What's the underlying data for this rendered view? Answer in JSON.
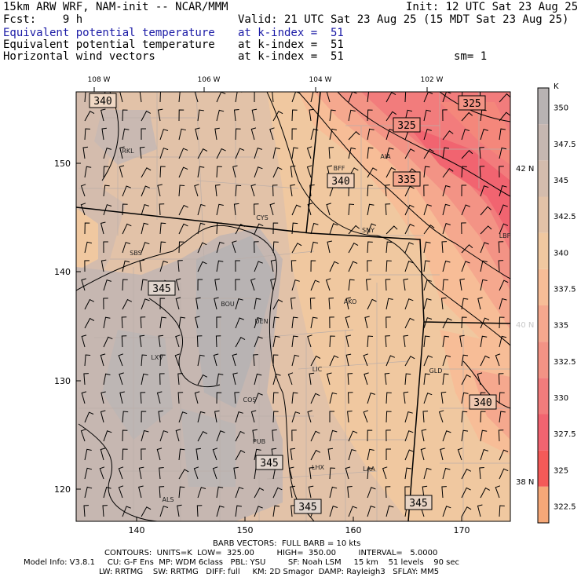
{
  "header": {
    "line1_left": "15km ARW WRF, NAM-init -- NCAR/MMM",
    "line1_right": "Init: 12 UTC Sat 23 Aug 25",
    "line2_left": "Fcst:    9 h",
    "line2_right": "Valid: 21 UTC Sat 23 Aug 25 (15 MDT Sat 23 Aug 25)",
    "field1_name": "Equivalent potential temperature",
    "field1_level": "at k-index =  51",
    "field2_name": "Equivalent potential temperature",
    "field2_level": "at k-index =  51",
    "field3_name": "Horizontal wind vectors",
    "field3_level": "at k-index =  51",
    "smoothing": "sm= 1"
  },
  "map": {
    "top_lon_labels": [
      "108 W",
      "106 W",
      "104 W",
      "102 W"
    ],
    "right_lat_labels": [
      "42 N",
      "40 N",
      "38 N"
    ],
    "x_ticks": [
      "140",
      "150",
      "160",
      "170"
    ],
    "y_ticks": [
      "150",
      "140",
      "130",
      "120"
    ],
    "cities": [
      "RKL",
      "BFF",
      "AIA",
      "CYS",
      "SNY",
      "SBS",
      "BOU",
      "DEN",
      "AKO",
      "LXV",
      "LIC",
      "GLD",
      "COS",
      "PUB",
      "LHX",
      "LAA",
      "ALS",
      "LBF"
    ],
    "contour_labels": [
      "340",
      "325",
      "325",
      "340",
      "335",
      "345",
      "340",
      "345",
      "345",
      "345"
    ]
  },
  "legend": {
    "unit": "K",
    "levels": [
      "350",
      "347.5",
      "345",
      "342.5",
      "340",
      "337.5",
      "335",
      "332.5",
      "330",
      "327.5",
      "325",
      "322.5"
    ],
    "colors": [
      "#b8b3b3",
      "#c6b7b1",
      "#d4bcad",
      "#e2c2a8",
      "#f0c8a0",
      "#f7bd97",
      "#f5a88e",
      "#f39385",
      "#f27c7c",
      "#f16470",
      "#f45a58",
      "#f6a878"
    ]
  },
  "footer": {
    "line1": "BARB VECTORS:  FULL BARB = 10 kts",
    "line2": "CONTOURS:  UNITS=K  LOW=  325.00         HIGH=  350.00         INTERVAL=   5.0000",
    "line3": "Model Info: V3.8.1     CU: G-F Ens  MP: WDM 6class   PBL: YSU         SF: Noah LSM     15 km    51 levels    90 sec",
    "line4": "LW: RRTMG    SW: RRTMG   DIFF: full     KM: 2D Smagor  DAMP: Rayleigh3   SFLAY: MM5"
  }
}
